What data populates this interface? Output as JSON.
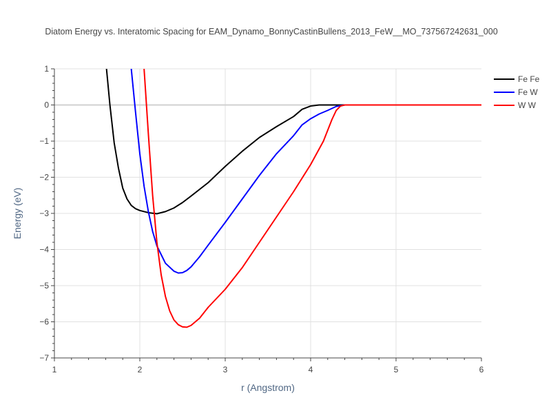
{
  "chart_data": {
    "type": "line",
    "title": "Diatom Energy vs. Interatomic Spacing for EAM_Dynamo_BonnyCastinBullens_2013_FeW__MO_737567242631_000",
    "xlabel": "r (Angstrom)",
    "ylabel": "Energy (eV)",
    "xlim": [
      1,
      6
    ],
    "ylim": [
      -7,
      1
    ],
    "xticks": [
      "1",
      "2",
      "3",
      "4",
      "5",
      "6"
    ],
    "yticks": [
      "1",
      "0",
      "−1",
      "−2",
      "−3",
      "−4",
      "−5",
      "−6",
      "−7"
    ],
    "grid": true,
    "legend_position": "top-right",
    "series": [
      {
        "name": "Fe Fe",
        "color": "#000000",
        "x": [
          1.61,
          1.65,
          1.7,
          1.75,
          1.8,
          1.85,
          1.9,
          1.95,
          2.0,
          2.1,
          2.2,
          2.3,
          2.4,
          2.5,
          2.6,
          2.8,
          3.0,
          3.2,
          3.4,
          3.6,
          3.8,
          3.9,
          4.0,
          4.1,
          4.2,
          4.3,
          4.4,
          5.0,
          6.0
        ],
        "y": [
          1.0,
          0.0,
          -1.05,
          -1.75,
          -2.3,
          -2.6,
          -2.78,
          -2.87,
          -2.92,
          -2.98,
          -3.01,
          -2.95,
          -2.85,
          -2.7,
          -2.52,
          -2.15,
          -1.7,
          -1.28,
          -0.9,
          -0.6,
          -0.32,
          -0.12,
          -0.03,
          0.0,
          0.0,
          0.0,
          0.0,
          0.0,
          0.0
        ]
      },
      {
        "name": "Fe W",
        "color": "#0000ff",
        "x": [
          1.9,
          1.95,
          2.0,
          2.05,
          2.1,
          2.15,
          2.2,
          2.3,
          2.4,
          2.45,
          2.5,
          2.55,
          2.6,
          2.7,
          2.8,
          3.0,
          3.2,
          3.4,
          3.6,
          3.8,
          3.9,
          4.0,
          4.1,
          4.2,
          4.3,
          4.4,
          5.0,
          6.0
        ],
        "y": [
          1.0,
          -0.2,
          -1.35,
          -2.25,
          -2.95,
          -3.5,
          -3.9,
          -4.38,
          -4.6,
          -4.65,
          -4.64,
          -4.58,
          -4.48,
          -4.2,
          -3.88,
          -3.25,
          -2.6,
          -1.95,
          -1.35,
          -0.85,
          -0.55,
          -0.38,
          -0.25,
          -0.15,
          -0.04,
          0.0,
          0.0,
          0.0
        ]
      },
      {
        "name": "W W",
        "color": "#ff0000",
        "x": [
          2.05,
          2.1,
          2.15,
          2.2,
          2.25,
          2.3,
          2.35,
          2.4,
          2.45,
          2.5,
          2.55,
          2.6,
          2.7,
          2.8,
          3.0,
          3.2,
          3.4,
          3.6,
          3.8,
          4.0,
          4.15,
          4.25,
          4.3,
          4.35,
          4.4,
          5.0,
          6.0
        ],
        "y": [
          1.0,
          -0.8,
          -2.5,
          -3.8,
          -4.7,
          -5.3,
          -5.7,
          -5.95,
          -6.08,
          -6.14,
          -6.15,
          -6.1,
          -5.9,
          -5.6,
          -5.1,
          -4.5,
          -3.8,
          -3.1,
          -2.4,
          -1.65,
          -1.0,
          -0.4,
          -0.15,
          -0.03,
          0.0,
          0.0,
          0.0
        ]
      }
    ]
  }
}
